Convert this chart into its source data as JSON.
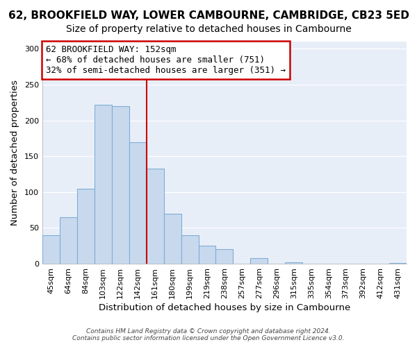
{
  "title": "62, BROOKFIELD WAY, LOWER CAMBOURNE, CAMBRIDGE, CB23 5ED",
  "subtitle": "Size of property relative to detached houses in Cambourne",
  "xlabel": "Distribution of detached houses by size in Cambourne",
  "ylabel": "Number of detached properties",
  "footer_line1": "Contains HM Land Registry data © Crown copyright and database right 2024.",
  "footer_line2": "Contains public sector information licensed under the Open Government Licence v3.0.",
  "bar_labels": [
    "45sqm",
    "64sqm",
    "84sqm",
    "103sqm",
    "122sqm",
    "142sqm",
    "161sqm",
    "180sqm",
    "199sqm",
    "219sqm",
    "238sqm",
    "257sqm",
    "277sqm",
    "296sqm",
    "315sqm",
    "335sqm",
    "354sqm",
    "373sqm",
    "392sqm",
    "412sqm",
    "431sqm"
  ],
  "bar_values": [
    40,
    65,
    105,
    222,
    220,
    170,
    133,
    70,
    40,
    25,
    20,
    0,
    8,
    0,
    2,
    0,
    0,
    0,
    0,
    0,
    1
  ],
  "bar_color": "#c8d9ee",
  "bar_edge_color": "#7eadd4",
  "vline_x": 5.5,
  "vline_color": "#cc0000",
  "annotation_text": "62 BROOKFIELD WAY: 152sqm\n← 68% of detached houses are smaller (751)\n32% of semi-detached houses are larger (351) →",
  "annotation_box_edge_color": "#cc0000",
  "annotation_box_fill": "#ffffff",
  "ylim": [
    0,
    310
  ],
  "yticks": [
    0,
    50,
    100,
    150,
    200,
    250,
    300
  ],
  "bg_color": "#ffffff",
  "plot_bg_color": "#e8eef8",
  "grid_color": "#ffffff",
  "title_fontsize": 11,
  "subtitle_fontsize": 10,
  "axis_label_fontsize": 9.5,
  "tick_fontsize": 8,
  "annotation_fontsize": 9
}
